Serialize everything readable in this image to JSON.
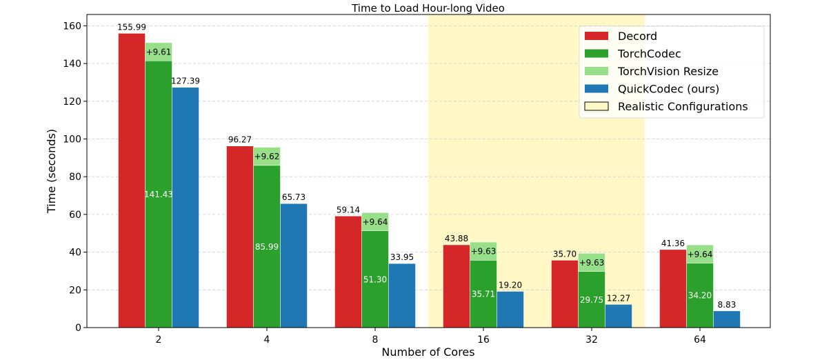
{
  "chart_data": {
    "type": "bar",
    "title": "Time to Load Hour-long Video",
    "xlabel": "Number of Cores",
    "ylabel": "Time (seconds)",
    "categories": [
      "2",
      "4",
      "8",
      "16",
      "32",
      "64"
    ],
    "ylim": [
      0,
      166
    ],
    "yticks": [
      0,
      20,
      40,
      60,
      80,
      100,
      120,
      140,
      160
    ],
    "grid": "y dashed",
    "legend_position": "top-right",
    "series": [
      {
        "name": "Decord",
        "color": "#d62728",
        "values": [
          155.99,
          96.27,
          59.14,
          43.88,
          35.7,
          41.36
        ],
        "labels": [
          "155.99",
          "96.27",
          "59.14",
          "43.88",
          "35.70",
          "41.36"
        ]
      },
      {
        "name": "TorchCodec",
        "color": "#2ca02c",
        "values": [
          141.43,
          85.99,
          51.3,
          35.71,
          29.75,
          34.2
        ],
        "labels": [
          "141.43",
          "85.99",
          "51.30",
          "35.71",
          "29.75",
          "34.20"
        ]
      },
      {
        "name": "TorchVision Resize",
        "color": "#98df8a",
        "stacked_on": "TorchCodec",
        "values": [
          9.61,
          9.62,
          9.64,
          9.63,
          9.63,
          9.64
        ],
        "labels": [
          "+9.61",
          "+9.62",
          "+9.64",
          "+9.63",
          "+9.63",
          "+9.64"
        ]
      },
      {
        "name": "QuickCodec (ours)",
        "color": "#1f77b4",
        "values": [
          127.39,
          65.73,
          33.95,
          19.2,
          12.27,
          8.83
        ],
        "labels": [
          "127.39",
          "65.73",
          "33.95",
          "19.20",
          "12.27",
          "8.83"
        ]
      }
    ],
    "highlight_region": {
      "name": "Realistic Configurations",
      "from_category": "16",
      "to_category": "32",
      "color": "#fff8c6"
    }
  }
}
